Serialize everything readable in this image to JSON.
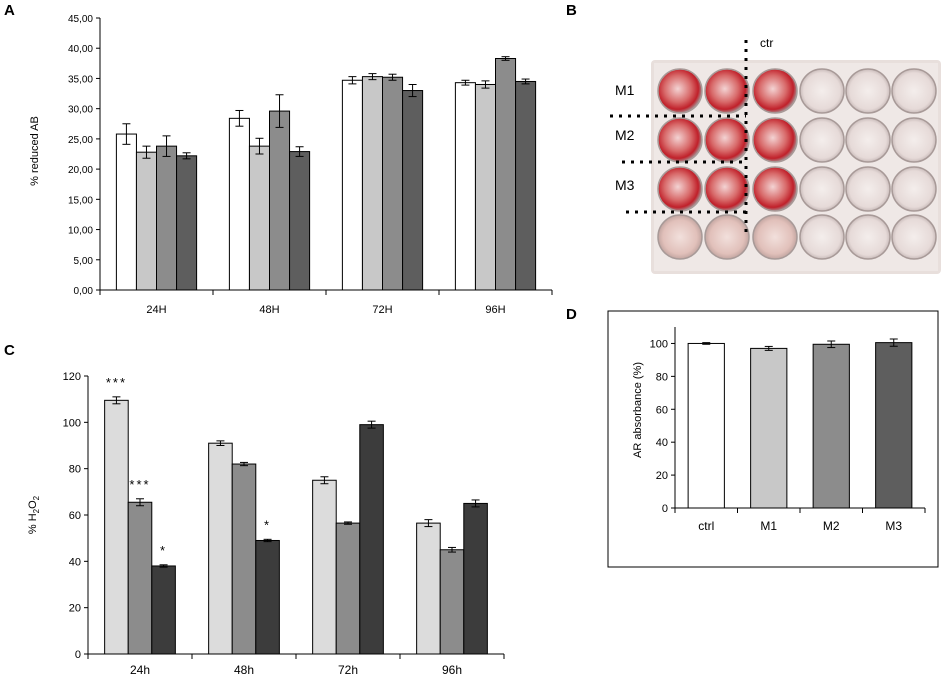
{
  "panels": {
    "a": {
      "letter": "A"
    },
    "b": {
      "letter": "B"
    },
    "c": {
      "letter": "C"
    },
    "d": {
      "letter": "D"
    }
  },
  "colors": {
    "white": "#ffffff",
    "light": "#c8c8c8",
    "lighter": "#dcdcdc",
    "mid": "#8c8c8c",
    "dark": "#5e5e5e",
    "darker": "#3c3c3c"
  },
  "photo": {
    "ctr_label": "ctr",
    "row_labels": [
      "M1",
      "M2",
      "M3"
    ]
  },
  "chart_data": [
    {
      "id": "A",
      "type": "bar",
      "categories": [
        "24H",
        "48H",
        "72H",
        "96H"
      ],
      "series": [
        {
          "name": "series1",
          "color": "#ffffff",
          "values": [
            25.8,
            28.4,
            34.7,
            34.3
          ],
          "errors": [
            1.7,
            1.3,
            0.6,
            0.4
          ]
        },
        {
          "name": "series2",
          "color": "#c8c8c8",
          "values": [
            22.8,
            23.8,
            35.3,
            34.0
          ],
          "errors": [
            1.0,
            1.3,
            0.5,
            0.6
          ]
        },
        {
          "name": "series3",
          "color": "#8c8c8c",
          "values": [
            23.8,
            29.6,
            35.2,
            38.3
          ],
          "errors": [
            1.7,
            2.7,
            0.5,
            0.3
          ]
        },
        {
          "name": "series4",
          "color": "#5e5e5e",
          "values": [
            22.2,
            22.9,
            33.0,
            34.5
          ],
          "errors": [
            0.5,
            0.8,
            1.0,
            0.4
          ]
        }
      ],
      "ylabel": "% reduced AB",
      "ylim": [
        0,
        45
      ],
      "yticks": [
        "0,00",
        "5,00",
        "10,00",
        "15,00",
        "20,00",
        "25,00",
        "30,00",
        "35,00",
        "40,00",
        "45,00"
      ],
      "grid": false
    },
    {
      "id": "C",
      "type": "bar",
      "categories": [
        "24h",
        "48h",
        "72h",
        "96h"
      ],
      "series": [
        {
          "name": "series1",
          "color": "#dcdcdc",
          "values": [
            109.5,
            91.0,
            75.0,
            56.5
          ],
          "errors": [
            1.5,
            1.0,
            1.5,
            1.5
          ]
        },
        {
          "name": "series2",
          "color": "#8c8c8c",
          "values": [
            65.5,
            82.0,
            56.5,
            45.0
          ],
          "errors": [
            1.5,
            0.7,
            0.5,
            1.0
          ]
        },
        {
          "name": "series3",
          "color": "#3c3c3c",
          "values": [
            38.0,
            49.0,
            99.0,
            65.0
          ],
          "errors": [
            0.5,
            0.5,
            1.5,
            1.5
          ]
        }
      ],
      "annotations": [
        {
          "category": 0,
          "series": 0,
          "text": "***"
        },
        {
          "category": 0,
          "series": 1,
          "text": "***"
        },
        {
          "category": 0,
          "series": 2,
          "text": "*"
        },
        {
          "category": 1,
          "series": 2,
          "text": "*"
        }
      ],
      "ylabel": "% H",
      "ylabel_sub": "2",
      "ylabel_tail": "O",
      "ylabel_sub2": "2",
      "ylim": [
        0,
        120
      ],
      "yticks": [
        "0",
        "20",
        "40",
        "60",
        "80",
        "100",
        "120"
      ],
      "grid": false
    },
    {
      "id": "D",
      "type": "bar",
      "categories": [
        "ctrl",
        "M1",
        "M2",
        "M3"
      ],
      "series": [
        {
          "name": "AR",
          "values": [
            100,
            97,
            99.5,
            100.5
          ],
          "errors": [
            0.5,
            1.2,
            2.0,
            2.2
          ],
          "colors": [
            "#ffffff",
            "#c8c8c8",
            "#8c8c8c",
            "#5e5e5e"
          ]
        }
      ],
      "ylabel": "AR absorbance  (%)",
      "ylim": [
        0,
        110
      ],
      "yticks": [
        "0",
        "20",
        "40",
        "60",
        "80",
        "100"
      ],
      "ytick_values": [
        0,
        20,
        40,
        60,
        80,
        100
      ],
      "grid": false
    }
  ]
}
